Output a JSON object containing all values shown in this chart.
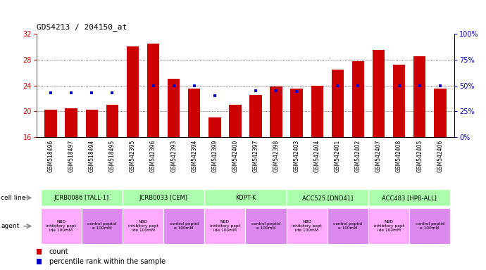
{
  "title": "GDS4213 / 204150_at",
  "samples": [
    "GSM518496",
    "GSM518497",
    "GSM518494",
    "GSM518495",
    "GSM542395",
    "GSM542396",
    "GSM542393",
    "GSM542394",
    "GSM542399",
    "GSM542400",
    "GSM542397",
    "GSM542398",
    "GSM542403",
    "GSM542404",
    "GSM542401",
    "GSM542402",
    "GSM542407",
    "GSM542408",
    "GSM542405",
    "GSM542406"
  ],
  "counts": [
    20.2,
    20.5,
    20.3,
    21.0,
    30.0,
    30.5,
    25.0,
    23.5,
    19.0,
    21.0,
    22.5,
    23.8,
    23.5,
    24.0,
    26.5,
    27.8,
    29.5,
    27.2,
    28.5,
    23.5
  ],
  "percentiles": [
    43,
    43,
    43,
    43,
    null,
    50,
    50,
    50,
    40,
    null,
    45,
    45,
    44,
    null,
    50,
    50,
    null,
    50,
    50,
    50
  ],
  "cell_lines": [
    {
      "label": "JCRB0086 [TALL-1]",
      "start": 0,
      "end": 4,
      "color": "#aaffaa"
    },
    {
      "label": "JCRB0033 [CEM]",
      "start": 4,
      "end": 8,
      "color": "#aaffaa"
    },
    {
      "label": "KOPT-K",
      "start": 8,
      "end": 12,
      "color": "#aaffaa"
    },
    {
      "label": "ACC525 [DND41]",
      "start": 12,
      "end": 16,
      "color": "#aaffaa"
    },
    {
      "label": "ACC483 [HPB-ALL]",
      "start": 16,
      "end": 20,
      "color": "#aaffaa"
    }
  ],
  "agents": [
    {
      "label": "NBD\ninhibitory pept\nide 100mM",
      "start": 0,
      "end": 2,
      "color": "#ffaaff"
    },
    {
      "label": "control peptid\ne 100mM",
      "start": 2,
      "end": 4,
      "color": "#dd88ee"
    },
    {
      "label": "NBD\ninhibitory pept\nide 100mM",
      "start": 4,
      "end": 6,
      "color": "#ffaaff"
    },
    {
      "label": "control peptid\ne 100mM",
      "start": 6,
      "end": 8,
      "color": "#dd88ee"
    },
    {
      "label": "NBD\ninhibitory pept\nide 100mM",
      "start": 8,
      "end": 10,
      "color": "#ffaaff"
    },
    {
      "label": "control peptid\ne 100mM",
      "start": 10,
      "end": 12,
      "color": "#dd88ee"
    },
    {
      "label": "NBD\ninhibitory pept\nide 100mM",
      "start": 12,
      "end": 14,
      "color": "#ffaaff"
    },
    {
      "label": "control peptid\ne 100mM",
      "start": 14,
      "end": 16,
      "color": "#dd88ee"
    },
    {
      "label": "NBD\ninhibitory pept\nide 100mM",
      "start": 16,
      "end": 18,
      "color": "#ffaaff"
    },
    {
      "label": "control peptid\ne 100mM",
      "start": 18,
      "end": 20,
      "color": "#dd88ee"
    }
  ],
  "ylim_left": [
    16,
    32
  ],
  "yticks_left": [
    16,
    20,
    24,
    28,
    32
  ],
  "ylim_right": [
    0,
    100
  ],
  "yticks_right": [
    0,
    25,
    50,
    75,
    100
  ],
  "bar_color": "#cc0000",
  "percentile_color": "#0000cc",
  "bar_width": 0.6,
  "label_color_left": "#cc0000",
  "label_color_right": "#0000cc",
  "grid_dotted_at": [
    20,
    24,
    28
  ],
  "bg_color": "#ffffff",
  "sample_bg": "#cccccc"
}
